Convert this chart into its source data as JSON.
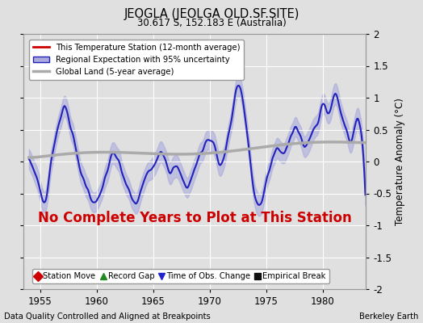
{
  "title": "JEOGLA (JEOLGA OLD.SF.SITE)",
  "subtitle": "30.617 S, 152.183 E (Australia)",
  "xlabel_bottom": "Data Quality Controlled and Aligned at Breakpoints",
  "xlabel_right": "Berkeley Earth",
  "ylabel": "Temperature Anomaly (°C)",
  "xlim": [
    1953.5,
    1983.8
  ],
  "ylim": [
    -2,
    2
  ],
  "yticks": [
    -2,
    -1.5,
    -1,
    -0.5,
    0,
    0.5,
    1,
    1.5,
    2
  ],
  "xticks": [
    1955,
    1960,
    1965,
    1970,
    1975,
    1980
  ],
  "annotation": "No Complete Years to Plot at This Station",
  "annotation_color": "#cc0000",
  "bg_color": "#e0e0e0",
  "grid_color": "#ffffff",
  "band_color": "#aaaadd",
  "band_alpha": 0.6,
  "line_blue": "#2222bb",
  "line_gray": "#aaaaaa",
  "legend_entries": [
    {
      "label": "This Temperature Station (12-month average)",
      "color": "#cc0000",
      "lw": 2
    },
    {
      "label": "Regional Expectation with 95% uncertainty",
      "color": "#2222bb",
      "lw": 1.5
    },
    {
      "label": "Global Land (5-year average)",
      "color": "#aaaaaa",
      "lw": 2.5
    }
  ],
  "bottom_legend": [
    {
      "label": "Station Move",
      "color": "#cc0000",
      "marker": "D"
    },
    {
      "label": "Record Gap",
      "color": "#228822",
      "marker": "^"
    },
    {
      "label": "Time of Obs. Change",
      "color": "#2222cc",
      "marker": "v"
    },
    {
      "label": "Empirical Break",
      "color": "#111111",
      "marker": "s"
    }
  ]
}
